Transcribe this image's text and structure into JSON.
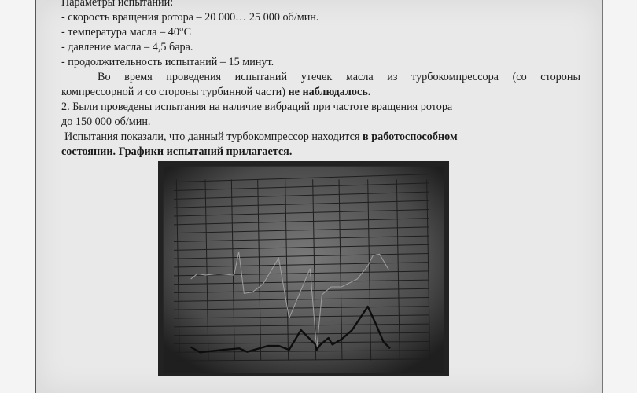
{
  "document": {
    "heading": "Параметры испытаний:",
    "params": [
      "- скорость вращения ротора – 20 000… 25 000 об/мин.",
      "- температура масла – 40°С",
      "- давление масла – 4,5 бара.",
      "- продолжительность испытаний – 15 минут."
    ],
    "para1_line1": "Во время проведения испытаний утечек масла из турбокомпрессора (со стороны",
    "para1_line2": "компрессорной и со стороны турбинной части)",
    "para1_bold": "не наблюдалось.",
    "para2_line1": "2. Были проведены испытания на наличие вибраций при частоте вращения ротора",
    "para2_line2": "до 150 000 об/мин.",
    "para3_text": "Испытания показали, что данный турбокомпрессор находится",
    "para3_bold1": "в работоспособном",
    "para3_bold2": "состоянии. Графики испытаний прилагается."
  },
  "figure": {
    "type": "photo-of-vibration-chart",
    "colors": {
      "frame": "#2a2a2a",
      "paper": "#6a6a6a",
      "grid": "#1e1e1e",
      "curve": "#111111",
      "thin_curve": "#9a9a9a"
    }
  }
}
